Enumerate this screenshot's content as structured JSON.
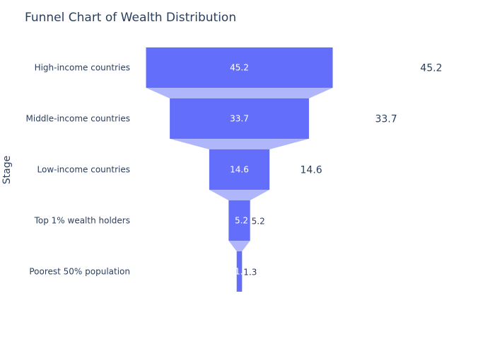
{
  "chart_data": {
    "type": "funnel",
    "title": "Funnel Chart of Wealth Distribution",
    "ylabel": "Stage",
    "categories": [
      "High-income countries",
      "Middle-income countries",
      "Low-income countries",
      "Top 1% wealth holders",
      "Poorest 50% population"
    ],
    "values": [
      45.2,
      33.7,
      14.6,
      5.2,
      1.3
    ],
    "colors": {
      "bar": "#636efa",
      "connector": "#b0b6fc",
      "inside_text": "#ffffff",
      "outside_text": "#2a3f5f"
    }
  }
}
